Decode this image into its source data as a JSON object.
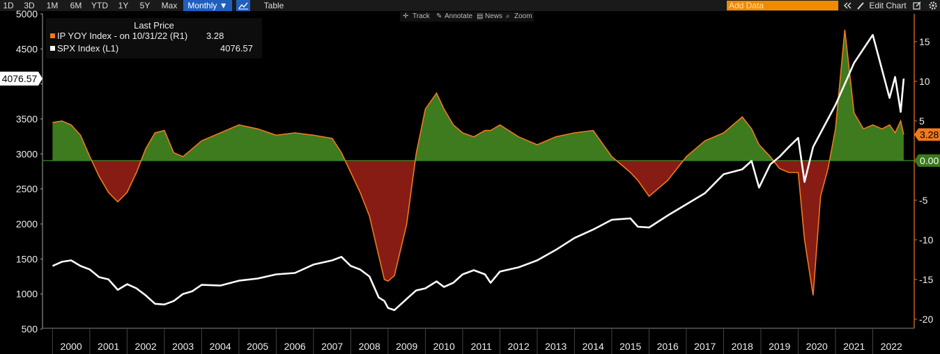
{
  "toolbar": {
    "ranges": [
      "1D",
      "3D",
      "1M",
      "6M",
      "YTD",
      "1Y",
      "5Y",
      "Max"
    ],
    "frequency": "Monthly ▼",
    "chart_type_icon": "line-chart-icon",
    "table_label": "Table",
    "add_data_placeholder": "Add Data",
    "collapse_icon": "double-chevron-left-icon",
    "edit_chart_label": "Edit Chart",
    "edit_icon": "pencil-icon",
    "export_icon": "export-icon",
    "settings_icon": "gear-icon"
  },
  "chart_tools": {
    "track": "Track",
    "annotate": "Annotate",
    "news": "News",
    "zoom": "Zoom"
  },
  "legend": {
    "header": "Last Price",
    "items": [
      {
        "label": "IP YOY Index -  on 10/31/22  (R1)",
        "value": "3.28",
        "color": "#f07a1e"
      },
      {
        "label": "SPX Index  (L1)",
        "value": "4076.57",
        "color": "#ffffff"
      }
    ]
  },
  "colors": {
    "positive_fill": "#3e7a1e",
    "negative_fill": "#861c14",
    "ip_line": "#f07a1e",
    "spx_line": "#ffffff",
    "axis_right": "#f07a1e"
  },
  "chart_data": [
    {
      "type": "line",
      "series": [
        {
          "name": "SPX Index  (L1)",
          "axis": "left"
        }
      ],
      "x": [
        2000.0,
        2000.25,
        2000.5,
        2000.75,
        2001.0,
        2001.25,
        2001.5,
        2001.75,
        2002.0,
        2002.25,
        2002.5,
        2002.75,
        2003.0,
        2003.25,
        2003.5,
        2003.75,
        2004.0,
        2004.5,
        2005.0,
        2005.5,
        2006.0,
        2006.5,
        2007.0,
        2007.5,
        2007.75,
        2008.0,
        2008.25,
        2008.5,
        2008.75,
        2008.9,
        2009.0,
        2009.17,
        2009.5,
        2009.75,
        2010.0,
        2010.3,
        2010.5,
        2010.75,
        2011.0,
        2011.3,
        2011.6,
        2011.75,
        2012.0,
        2012.5,
        2013.0,
        2013.5,
        2014.0,
        2014.5,
        2015.0,
        2015.5,
        2015.7,
        2016.0,
        2016.5,
        2017.0,
        2017.5,
        2018.0,
        2018.5,
        2018.75,
        2018.95,
        2019.25,
        2019.5,
        2019.75,
        2020.0,
        2020.17,
        2020.4,
        2020.6,
        2020.8,
        2021.0,
        2021.25,
        2021.5,
        2021.75,
        2022.0,
        2022.25,
        2022.45,
        2022.6,
        2022.75,
        2022.83
      ],
      "y": [
        1400,
        1460,
        1480,
        1400,
        1350,
        1240,
        1210,
        1060,
        1140,
        1080,
        980,
        860,
        850,
        900,
        1000,
        1040,
        1130,
        1120,
        1190,
        1220,
        1280,
        1300,
        1420,
        1480,
        1530,
        1400,
        1350,
        1250,
        950,
        900,
        800,
        770,
        930,
        1050,
        1080,
        1180,
        1100,
        1160,
        1280,
        1340,
        1280,
        1160,
        1320,
        1380,
        1480,
        1630,
        1800,
        1920,
        2060,
        2080,
        1960,
        1950,
        2120,
        2280,
        2440,
        2710,
        2780,
        2900,
        2520,
        2850,
        2960,
        3100,
        3230,
        2600,
        3100,
        3300,
        3500,
        3700,
        4000,
        4300,
        4500,
        4700,
        4200,
        3800,
        4100,
        3600,
        4076.57
      ],
      "ylim": [
        550,
        5000
      ],
      "yticks": [
        500,
        1000,
        1500,
        2000,
        2500,
        3000,
        3500,
        4000,
        4500,
        5000
      ],
      "last_value_label": "4076.57"
    },
    {
      "type": "area",
      "series": [
        {
          "name": "IP YOY Index -  on 10/31/22  (R1)",
          "axis": "right"
        }
      ],
      "x": [
        2000.0,
        2000.25,
        2000.5,
        2000.75,
        2001.0,
        2001.25,
        2001.5,
        2001.75,
        2002.0,
        2002.25,
        2002.5,
        2002.75,
        2003.0,
        2003.25,
        2003.5,
        2003.75,
        2004.0,
        2004.5,
        2005.0,
        2005.5,
        2006.0,
        2006.5,
        2007.0,
        2007.5,
        2007.75,
        2008.0,
        2008.25,
        2008.5,
        2008.75,
        2008.9,
        2009.0,
        2009.17,
        2009.5,
        2009.75,
        2010.0,
        2010.3,
        2010.5,
        2010.75,
        2011.0,
        2011.3,
        2011.6,
        2011.75,
        2012.0,
        2012.5,
        2013.0,
        2013.5,
        2014.0,
        2014.5,
        2015.0,
        2015.5,
        2015.7,
        2016.0,
        2016.5,
        2017.0,
        2017.5,
        2018.0,
        2018.5,
        2018.75,
        2018.95,
        2019.25,
        2019.5,
        2019.75,
        2020.0,
        2020.17,
        2020.4,
        2020.6,
        2020.8,
        2021.0,
        2021.25,
        2021.5,
        2021.75,
        2022.0,
        2022.25,
        2022.45,
        2022.6,
        2022.75,
        2022.83
      ],
      "y": [
        4.8,
        5.0,
        4.5,
        3.2,
        0.5,
        -2.0,
        -4.0,
        -5.2,
        -4.0,
        -1.5,
        1.5,
        3.5,
        3.8,
        1.0,
        0.5,
        1.5,
        2.5,
        3.5,
        4.5,
        4.0,
        3.2,
        3.5,
        3.2,
        2.8,
        1.0,
        -1.5,
        -4.0,
        -7.0,
        -12.0,
        -15.0,
        -15.2,
        -14.5,
        -8.0,
        0.8,
        6.5,
        8.5,
        6.5,
        4.5,
        3.5,
        3.0,
        3.8,
        3.8,
        4.5,
        3.0,
        2.0,
        3.0,
        3.5,
        3.8,
        0.5,
        -1.5,
        -2.5,
        -4.5,
        -2.5,
        0.5,
        2.5,
        3.5,
        5.5,
        4.0,
        2.0,
        0.5,
        -1.0,
        -1.5,
        -1.5,
        -10.0,
        -17.0,
        -4.5,
        -1.0,
        4.0,
        16.5,
        6.0,
        4.0,
        4.5,
        4.0,
        4.5,
        3.5,
        5.0,
        3.28
      ],
      "ylim": [
        -20.8,
        18.5
      ],
      "yticks": [
        -20,
        -15,
        -10,
        -5,
        0,
        5,
        10,
        15
      ],
      "zero_label": "0.00",
      "last_value_label": "3.28"
    }
  ],
  "x_axis": {
    "labels": [
      "2000",
      "2001",
      "2002",
      "2003",
      "2004",
      "2005",
      "2006",
      "2007",
      "2008",
      "2009",
      "2010",
      "2011",
      "2012",
      "2013",
      "2014",
      "2015",
      "2016",
      "2017",
      "2018",
      "2019",
      "2020",
      "2021",
      "2022"
    ]
  }
}
